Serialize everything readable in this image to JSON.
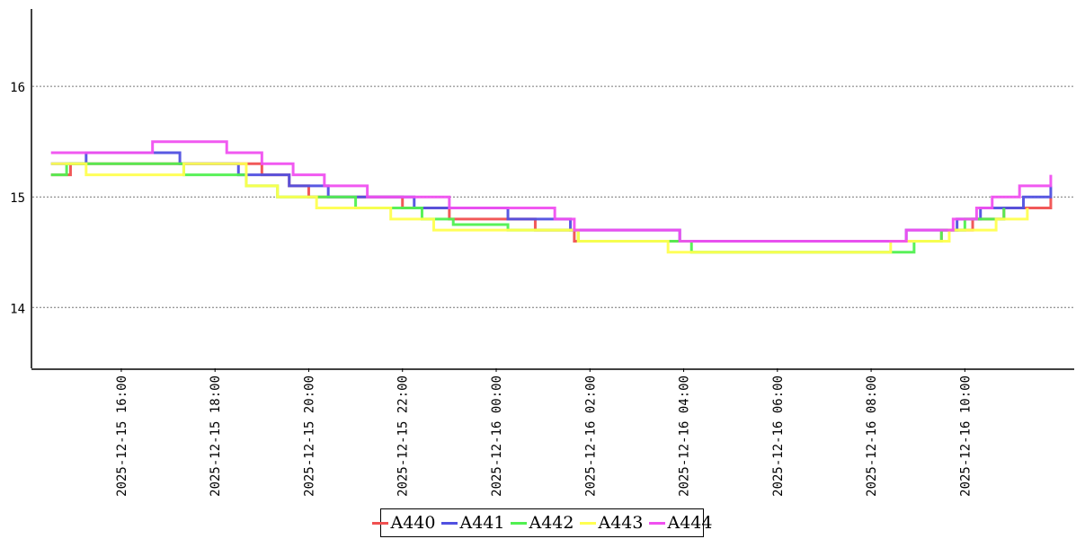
{
  "chart_data": {
    "type": "line",
    "title": "",
    "xlabel": "",
    "ylabel": "",
    "ylim": [
      13.45,
      16.7
    ],
    "yticks": [
      14,
      15,
      16
    ],
    "ytick_labels": [
      "14",
      "15",
      "16"
    ],
    "xlim": [
      "2025-12-15 14:05",
      "2025-12-16 12:20"
    ],
    "xticks": [
      "2025-12-15 16:00",
      "2025-12-15 18:00",
      "2025-12-15 20:00",
      "2025-12-15 22:00",
      "2025-12-16 00:00",
      "2025-12-16 02:00",
      "2025-12-16 04:00",
      "2025-12-16 06:00",
      "2025-12-16 08:00",
      "2025-12-16 10:00"
    ],
    "xtick_labels": [
      "2025-12-15 16:00",
      "2025-12-15 18:00",
      "2025-12-15 20:00",
      "2025-12-15 22:00",
      "2025-12-16 00:00",
      "2025-12-16 02:00",
      "2025-12-16 04:00",
      "2025-12-16 06:00",
      "2025-12-16 08:00",
      "2025-12-16 10:00"
    ],
    "grid": "y-dotted",
    "legend_position": "bottom-center",
    "series": [
      {
        "name": "A440",
        "color": "#f05050",
        "x": [
          "2025-12-15 14:30",
          "2025-12-15 14:55",
          "2025-12-15 19:00",
          "2025-12-15 19:35",
          "2025-12-15 20:00",
          "2025-12-15 22:00",
          "2025-12-15 23:00",
          "2025-12-16 00:50",
          "2025-12-16 01:40",
          "2025-12-16 04:00",
          "2025-12-16 08:35",
          "2025-12-16 09:30",
          "2025-12-16 10:10",
          "2025-12-16 10:50",
          "2025-12-16 11:50"
        ],
        "values": [
          15.2,
          15.3,
          15.2,
          15.1,
          15.0,
          14.9,
          14.8,
          14.7,
          14.6,
          14.6,
          14.6,
          14.7,
          14.8,
          14.9,
          15.0
        ]
      },
      {
        "name": "A441",
        "color": "#5050e0",
        "x": [
          "2025-12-15 14:30",
          "2025-12-15 15:15",
          "2025-12-15 17:15",
          "2025-12-15 18:30",
          "2025-12-15 19:35",
          "2025-12-15 20:25",
          "2025-12-15 22:15",
          "2025-12-15 23:05",
          "2025-12-16 00:15",
          "2025-12-16 01:35",
          "2025-12-16 03:55",
          "2025-12-16 08:45",
          "2025-12-16 09:50",
          "2025-12-16 10:20",
          "2025-12-16 11:15",
          "2025-12-16 11:50"
        ],
        "values": [
          15.3,
          15.4,
          15.3,
          15.2,
          15.1,
          15.0,
          14.9,
          14.9,
          14.8,
          14.7,
          14.6,
          14.7,
          14.8,
          14.9,
          15.0,
          15.1
        ]
      },
      {
        "name": "A442",
        "color": "#50f050",
        "x": [
          "2025-12-15 14:30",
          "2025-12-15 14:50",
          "2025-12-15 17:20",
          "2025-12-15 18:40",
          "2025-12-15 19:20",
          "2025-12-15 21:00",
          "2025-12-15 22:25",
          "2025-12-15 23:05",
          "2025-12-16 00:15",
          "2025-12-16 01:45",
          "2025-12-16 04:10",
          "2025-12-16 08:55",
          "2025-12-16 09:30",
          "2025-12-16 10:00",
          "2025-12-16 10:50"
        ],
        "values": [
          15.2,
          15.3,
          15.2,
          15.1,
          15.0,
          14.9,
          14.8,
          14.75,
          14.7,
          14.6,
          14.5,
          14.6,
          14.7,
          14.8,
          14.9
        ]
      },
      {
        "name": "A443",
        "color": "#ffff50",
        "x": [
          "2025-12-15 14:30",
          "2025-12-15 15:15",
          "2025-12-15 17:20",
          "2025-12-15 18:40",
          "2025-12-15 19:20",
          "2025-12-15 20:10",
          "2025-12-15 21:45",
          "2025-12-15 22:40",
          "2025-12-15 23:00",
          "2025-12-16 00:10",
          "2025-12-16 01:45",
          "2025-12-16 03:40",
          "2025-12-16 08:25",
          "2025-12-16 09:40",
          "2025-12-16 10:40",
          "2025-12-16 11:20"
        ],
        "values": [
          15.3,
          15.2,
          15.3,
          15.1,
          15.0,
          14.9,
          14.8,
          14.7,
          14.7,
          14.7,
          14.6,
          14.5,
          14.6,
          14.7,
          14.8,
          14.9
        ]
      },
      {
        "name": "A444",
        "color": "#f050f0",
        "x": [
          "2025-12-15 14:30",
          "2025-12-15 15:45",
          "2025-12-15 16:40",
          "2025-12-15 18:15",
          "2025-12-15 19:00",
          "2025-12-15 19:40",
          "2025-12-15 20:20",
          "2025-12-15 21:15",
          "2025-12-15 22:30",
          "2025-12-15 23:00",
          "2025-12-16 00:15",
          "2025-12-16 01:15",
          "2025-12-16 01:40",
          "2025-12-16 03:55",
          "2025-12-16 08:45",
          "2025-12-16 09:45",
          "2025-12-16 10:15",
          "2025-12-16 10:35",
          "2025-12-16 11:10",
          "2025-12-16 11:50"
        ],
        "values": [
          15.4,
          15.4,
          15.5,
          15.4,
          15.3,
          15.2,
          15.1,
          15.0,
          15.0,
          14.9,
          14.9,
          14.8,
          14.7,
          14.6,
          14.7,
          14.8,
          14.9,
          15.0,
          15.1,
          15.2
        ]
      }
    ]
  }
}
